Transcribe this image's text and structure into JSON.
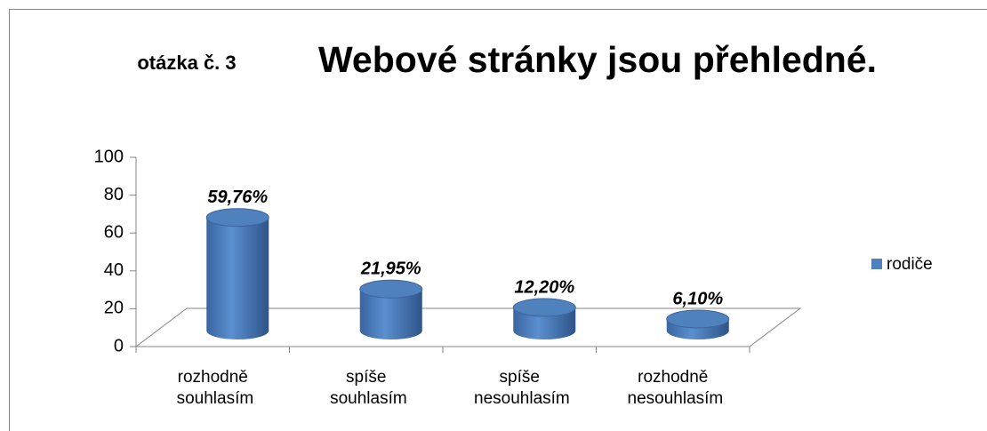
{
  "chart_data": {
    "type": "bar3d",
    "title": "Webové stránky jsou přehledné.",
    "subtitle": "otázka č. 3",
    "categories": [
      "rozhodně souhlasím",
      "spíše souhlasím",
      "spíše nesouhlasím",
      "rozhodně nesouhlasím"
    ],
    "series": [
      {
        "name": "rodiče",
        "color": "#4f81bd",
        "values": [
          59.76,
          21.95,
          12.2,
          6.1
        ],
        "value_labels": [
          "59,76%",
          "21,95%",
          "12,20%",
          "6,10%"
        ]
      }
    ],
    "ylim": [
      0,
      100
    ],
    "yticks": [
      0,
      20,
      40,
      60,
      80,
      100
    ],
    "legend": "right"
  }
}
